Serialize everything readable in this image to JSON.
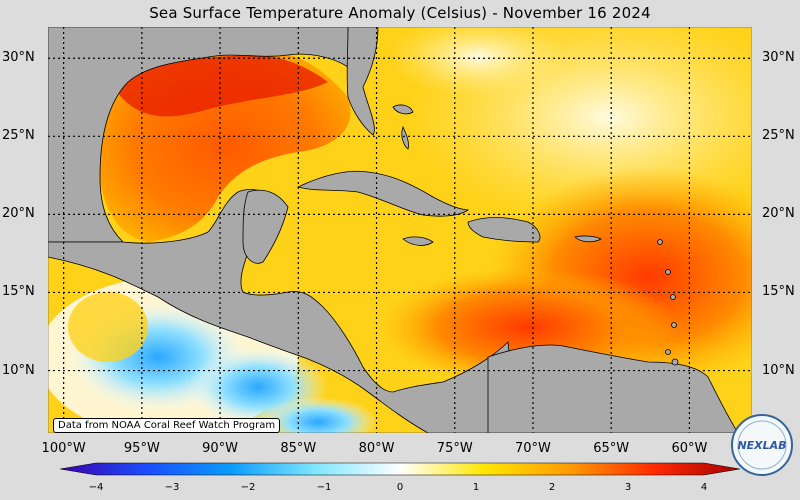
{
  "title": "Sea Surface Temperature Anomaly (Celsius) - November 16 2024",
  "map": {
    "lat_labels": [
      "30°N",
      "25°N",
      "20°N",
      "15°N",
      "10°N"
    ],
    "lon_labels": [
      "100°W",
      "95°W",
      "90°W",
      "85°W",
      "80°W",
      "75°W",
      "70°W",
      "65°W",
      "60°W"
    ],
    "lat_range": [
      6,
      32
    ],
    "lon_range": [
      -101,
      -56
    ],
    "land_color": "#a9a9a9",
    "grid": "dotted"
  },
  "colorbar": {
    "ticks": [
      "−4",
      "−3",
      "−2",
      "−1",
      "0",
      "1",
      "2",
      "3",
      "4"
    ],
    "range": [
      -4,
      4
    ],
    "colors": [
      "#3b00a8",
      "#1a4cff",
      "#0a9bff",
      "#7fe6ff",
      "#ffffff",
      "#ffe600",
      "#ff9a00",
      "#ff2a00",
      "#a50000"
    ]
  },
  "credit": "Data from NOAA Coral Reef Watch Program",
  "logo_text": "NEXLAB"
}
